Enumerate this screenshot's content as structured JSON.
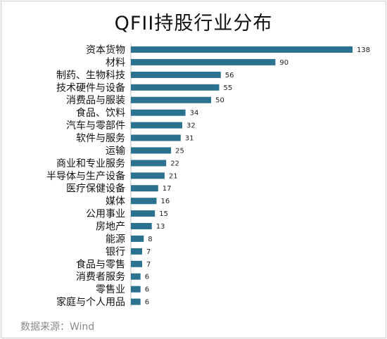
{
  "title": "QFII持股行业分布",
  "source": "数据来源：Wind",
  "chart_data": {
    "type": "bar",
    "orientation": "horizontal",
    "title": "QFII持股行业分布",
    "categories": [
      "资本货物",
      "材料",
      "制药、生物科技",
      "技术硬件与设备",
      "消费品与服装",
      "食品、饮料",
      "汽车与零部件",
      "软件与服务",
      "运输",
      "商业和专业服务",
      "半导体与生产设备",
      "医疗保健设备",
      "媒体",
      "公用事业",
      "房地产",
      "能源",
      "银行",
      "食品与零售",
      "消费者服务",
      "零售业",
      "家庭与个人用品"
    ],
    "values": [
      138,
      90,
      56,
      55,
      50,
      34,
      32,
      31,
      25,
      22,
      21,
      17,
      16,
      15,
      13,
      8,
      7,
      7,
      6,
      6,
      6
    ],
    "xlim": [
      0,
      138
    ],
    "grid": false,
    "legend": "none",
    "bar_color": "#2b7190",
    "data_labels": true
  }
}
